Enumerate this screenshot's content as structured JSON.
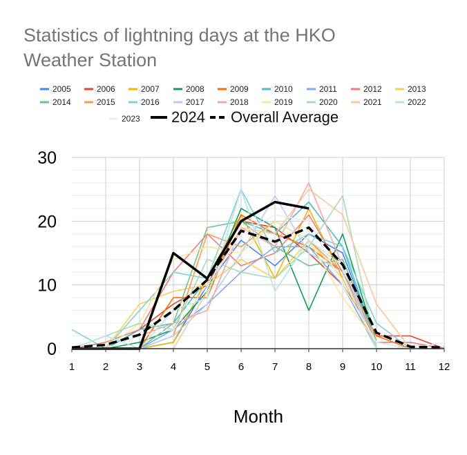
{
  "chart_data": {
    "type": "line",
    "title": "Statistics of lightning days at the HKO Weather Station",
    "title_lines": [
      "Statistics of lightning days at the HKO",
      "Weather Station"
    ],
    "xlabel": "Month",
    "ylabel": "",
    "x": [
      1,
      2,
      3,
      4,
      5,
      6,
      7,
      8,
      9,
      10,
      11,
      12
    ],
    "xticks": [
      "1",
      "2",
      "3",
      "4",
      "5",
      "6",
      "7",
      "8",
      "9",
      "10",
      "11",
      "12"
    ],
    "yticks": [
      "0",
      "10",
      "20",
      "30"
    ],
    "ylim": [
      0,
      30
    ],
    "grid": true,
    "legend_position": "top",
    "series": [
      {
        "name": "2005",
        "color": "#4285f4",
        "values": [
          0,
          0,
          0,
          1,
          10,
          17,
          13,
          18,
          15,
          1,
          0,
          0
        ]
      },
      {
        "name": "2006",
        "color": "#db4437",
        "values": [
          0,
          0,
          3,
          7,
          10,
          20,
          19,
          15,
          10,
          2,
          2,
          0
        ]
      },
      {
        "name": "2007",
        "color": "#f4b400",
        "values": [
          0,
          0,
          0,
          1,
          11,
          21,
          11,
          22,
          11,
          0,
          0,
          0
        ]
      },
      {
        "name": "2008",
        "color": "#0f9d58",
        "values": [
          0,
          0,
          1,
          3,
          9,
          22,
          19,
          6,
          18,
          1,
          0,
          0
        ]
      },
      {
        "name": "2009",
        "color": "#ff6d01",
        "values": [
          0,
          0,
          0,
          8,
          8,
          21,
          18,
          16,
          12,
          2,
          0,
          0
        ]
      },
      {
        "name": "2010",
        "color": "#46bdc6",
        "values": [
          0,
          0,
          3,
          4,
          11,
          20,
          18,
          23,
          16,
          1,
          0,
          0
        ]
      },
      {
        "name": "2011",
        "color": "#7baaf7",
        "values": [
          0,
          0,
          0,
          3,
          7,
          12,
          16,
          16,
          10,
          0,
          0,
          0
        ]
      },
      {
        "name": "2012",
        "color": "#f07b72",
        "values": [
          0,
          1,
          3,
          12,
          18,
          13,
          15,
          21,
          12,
          1,
          1,
          0
        ]
      },
      {
        "name": "2013",
        "color": "#fcd04f",
        "values": [
          0,
          0,
          7,
          9,
          10,
          14,
          11,
          17,
          11,
          0,
          0,
          0
        ]
      },
      {
        "name": "2014",
        "color": "#71c287",
        "values": [
          0,
          0,
          0,
          4,
          19,
          20,
          16,
          13,
          14,
          1,
          0,
          0
        ]
      },
      {
        "name": "2015",
        "color": "#ff994d",
        "values": [
          0,
          0,
          0,
          2,
          18,
          16,
          20,
          17,
          12,
          0,
          0,
          0
        ]
      },
      {
        "name": "2016",
        "color": "#7ed1d7",
        "values": [
          3,
          0,
          6,
          12,
          11,
          25,
          15,
          18,
          16,
          4,
          0,
          0
        ]
      },
      {
        "name": "2017",
        "color": "#b3cefb",
        "values": [
          0,
          0,
          0,
          2,
          7,
          15,
          24,
          15,
          12,
          0,
          0,
          0
        ]
      },
      {
        "name": "2018",
        "color": "#f7a7a0",
        "values": [
          0,
          0,
          2,
          4,
          6,
          19,
          16,
          26,
          13,
          1,
          0,
          0
        ]
      },
      {
        "name": "2019",
        "color": "#fde49b",
        "values": [
          0,
          0,
          4,
          14,
          16,
          15,
          20,
          17,
          8,
          1,
          0,
          0
        ]
      },
      {
        "name": "2020",
        "color": "#a8dab5",
        "values": [
          0,
          2,
          4,
          3,
          14,
          12,
          11,
          16,
          24,
          0,
          0,
          0
        ]
      },
      {
        "name": "2021",
        "color": "#ffc599",
        "values": [
          0,
          0,
          0,
          0,
          9,
          19,
          18,
          25,
          21,
          7,
          0,
          0
        ]
      },
      {
        "name": "2022",
        "color": "#b5e3e7",
        "values": [
          0,
          2,
          0,
          6,
          8,
          25,
          9,
          17,
          13,
          0,
          0,
          0
        ]
      },
      {
        "name": "2023",
        "color": "#e8eefa",
        "values": [
          0,
          0,
          2,
          3,
          10,
          18,
          21,
          20,
          10,
          1,
          0,
          1
        ]
      },
      {
        "name": "2024",
        "color": "#000000",
        "values": [
          0,
          0,
          0,
          15,
          11,
          20,
          23,
          22,
          null,
          null,
          null,
          null
        ]
      },
      {
        "name": "Overall Average",
        "color": "#000000",
        "dashed": true,
        "values": [
          0.2,
          0.6,
          2.2,
          6,
          10.8,
          18.5,
          16.8,
          19,
          13.2,
          2.5,
          0.3,
          0.2
        ]
      }
    ]
  }
}
